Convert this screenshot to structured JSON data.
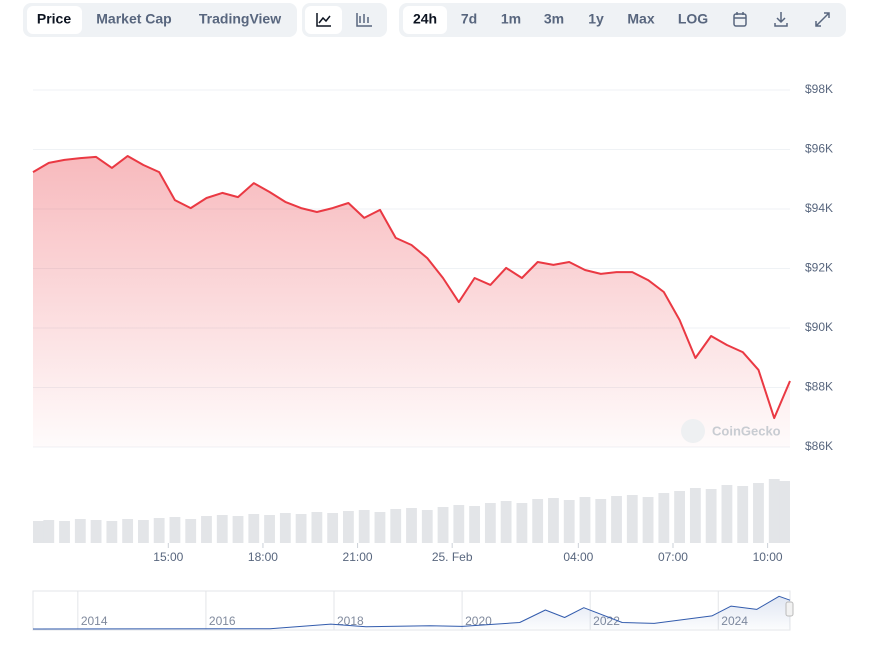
{
  "toolbar": {
    "tabs": [
      "Price",
      "Market Cap",
      "TradingView"
    ],
    "ranges": [
      "24h",
      "7d",
      "1m",
      "3m",
      "1y",
      "Max",
      "LOG"
    ]
  },
  "watermark": "CoinGecko",
  "chart_data": [
    {
      "type": "line",
      "color": "#ea3943",
      "grid": true,
      "x": [
        0,
        0.5,
        1,
        1.5,
        2,
        2.5,
        3,
        3.5,
        4,
        4.5,
        5,
        5.5,
        6,
        6.5,
        7,
        7.5,
        8,
        8.5,
        9,
        9.5,
        10,
        10.5,
        11,
        11.5,
        12,
        12.5,
        13,
        13.5,
        14,
        14.5,
        15,
        15.5,
        16,
        16.5,
        17,
        17.5,
        18,
        18.5,
        19,
        19.5,
        20,
        20.5,
        21,
        21.5,
        22,
        22.5,
        23,
        23.5,
        24
      ],
      "series": [
        {
          "values": [
            95.24,
            95.55,
            95.65,
            95.71,
            95.75,
            95.38,
            95.78,
            95.48,
            95.24,
            94.3,
            94.03,
            94.37,
            94.54,
            94.4,
            94.87,
            94.57,
            94.24,
            94.03,
            93.9,
            94.03,
            94.2,
            93.7,
            93.97,
            93.03,
            92.79,
            92.35,
            91.68,
            90.87,
            91.68,
            91.45,
            92.02,
            91.68,
            92.22,
            92.12,
            92.22,
            91.95,
            91.82,
            91.88,
            91.88,
            91.61,
            91.21,
            90.27,
            88.99,
            89.73,
            89.43,
            89.19,
            88.59,
            86.97,
            88.22
          ]
        }
      ],
      "xlim": [
        0,
        24
      ],
      "ylim": [
        86,
        98
      ],
      "yticks": [
        {
          "value": 86,
          "label": "$86K"
        },
        {
          "value": 88,
          "label": "$88K"
        },
        {
          "value": 90,
          "label": "$90K"
        },
        {
          "value": 92,
          "label": "$92K"
        },
        {
          "value": 94,
          "label": "$94K"
        },
        {
          "value": 96,
          "label": "$96K"
        },
        {
          "value": 98,
          "label": "$98K"
        }
      ],
      "xticks": [
        {
          "value": 4.29,
          "label": "15:00"
        },
        {
          "value": 7.29,
          "label": "18:00"
        },
        {
          "value": 10.29,
          "label": "21:00"
        },
        {
          "value": 13.29,
          "label": "25. Feb"
        },
        {
          "value": 17.29,
          "label": "04:00"
        },
        {
          "value": 20.29,
          "label": "07:00"
        },
        {
          "value": 23.29,
          "label": "10:00"
        }
      ]
    },
    {
      "type": "bar",
      "color": "#e3e5e8",
      "x": [
        0,
        0.5,
        1,
        1.5,
        2,
        2.5,
        3,
        3.5,
        4,
        4.5,
        5,
        5.5,
        6,
        6.5,
        7,
        7.5,
        8,
        8.5,
        9,
        9.5,
        10,
        10.5,
        11,
        11.5,
        12,
        12.5,
        13,
        13.5,
        14,
        14.5,
        15,
        15.5,
        16,
        16.5,
        17,
        17.5,
        18,
        18.5,
        19,
        19.5,
        20,
        20.5,
        21,
        21.5,
        22,
        22.5,
        23,
        23.5,
        24
      ],
      "values": [
        22,
        23,
        22,
        24,
        23,
        22,
        24,
        23,
        25,
        26,
        24,
        27,
        28,
        27,
        29,
        28,
        30,
        29,
        31,
        30,
        32,
        33,
        31,
        34,
        35,
        33,
        36,
        38,
        37,
        40,
        42,
        40,
        44,
        45,
        43,
        46,
        44,
        47,
        48,
        46,
        50,
        52,
        55,
        54,
        58,
        57,
        60,
        64,
        62
      ],
      "xlim": [
        0,
        24
      ],
      "ylim": [
        0,
        70
      ]
    },
    {
      "type": "line",
      "color": "#335cad",
      "x": [
        2013.3,
        2017,
        2017.95,
        2018.5,
        2019.5,
        2020,
        2020.9,
        2021.3,
        2021.6,
        2021.9,
        2022.5,
        2023,
        2023.9,
        2024.2,
        2024.6,
        2024.95,
        2025.12
      ],
      "series": [
        {
          "values": [
            0.1,
            1,
            15,
            7,
            10,
            8,
            20,
            58,
            35,
            65,
            20,
            17,
            40,
            70,
            60,
            100,
            88
          ]
        }
      ],
      "xlim": [
        2013.3,
        2025.12
      ],
      "ylim": [
        0,
        110
      ],
      "xticks": [
        2014,
        2016,
        2018,
        2020,
        2022,
        2024
      ]
    }
  ]
}
